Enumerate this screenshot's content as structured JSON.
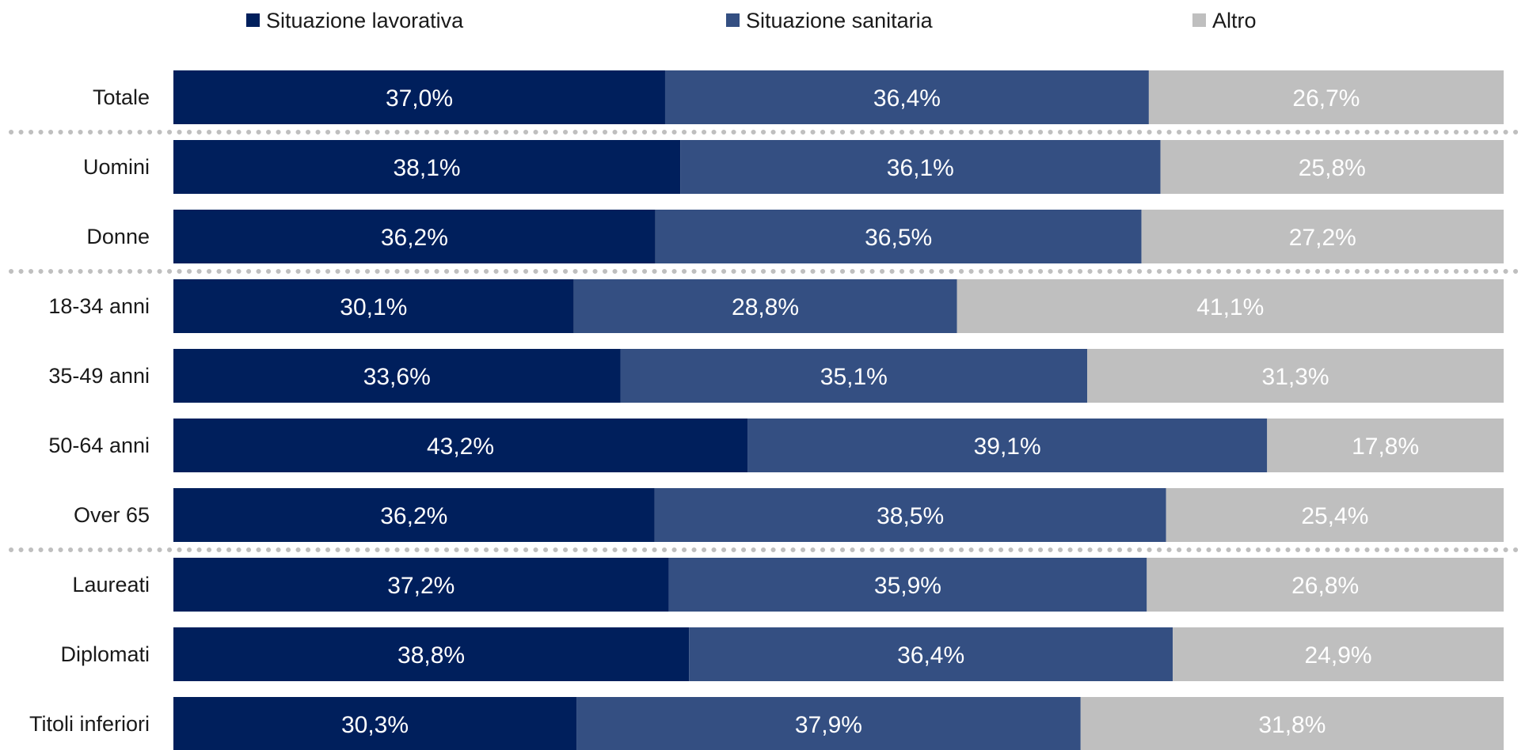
{
  "chart_data": {
    "type": "bar",
    "orientation": "horizontal",
    "stacked": "100%",
    "categories": [
      "Totale",
      "Uomini",
      "Donne",
      "18-34 anni",
      "35-49 anni",
      "50-64 anni",
      "Over 65",
      "Laureati",
      "Diplomati",
      "Titoli inferiori"
    ],
    "series": [
      {
        "name": "Situazione lavorativa",
        "color": "#001f5c",
        "values": [
          37.0,
          38.1,
          36.2,
          30.1,
          33.6,
          43.2,
          36.2,
          37.2,
          38.8,
          30.3
        ],
        "labels": [
          "37,0%",
          "38,1%",
          "36,2%",
          "30,1%",
          "33,6%",
          "43,2%",
          "36,2%",
          "37,2%",
          "38,8%",
          "30,3%"
        ]
      },
      {
        "name": "Situazione sanitaria",
        "color": "#344f82",
        "values": [
          36.4,
          36.1,
          36.5,
          28.8,
          35.1,
          39.1,
          38.5,
          35.9,
          36.4,
          37.9
        ],
        "labels": [
          "36,4%",
          "36,1%",
          "36,5%",
          "28,8%",
          "35,1%",
          "39,1%",
          "38,5%",
          "35,9%",
          "36,4%",
          "37,9%"
        ]
      },
      {
        "name": "Altro",
        "color": "#bfbfbf",
        "values": [
          26.7,
          25.8,
          27.2,
          41.1,
          31.3,
          17.8,
          25.4,
          26.8,
          24.9,
          31.8
        ],
        "labels": [
          "26,7%",
          "25,8%",
          "27,2%",
          "41,1%",
          "31,3%",
          "17,8%",
          "25,4%",
          "26,8%",
          "24,9%",
          "31,8%"
        ]
      }
    ],
    "group_separators_after": [
      "Totale",
      "Donne",
      "Over 65"
    ],
    "legend_position": "top",
    "grid": false,
    "xlim": [
      0,
      100
    ]
  }
}
